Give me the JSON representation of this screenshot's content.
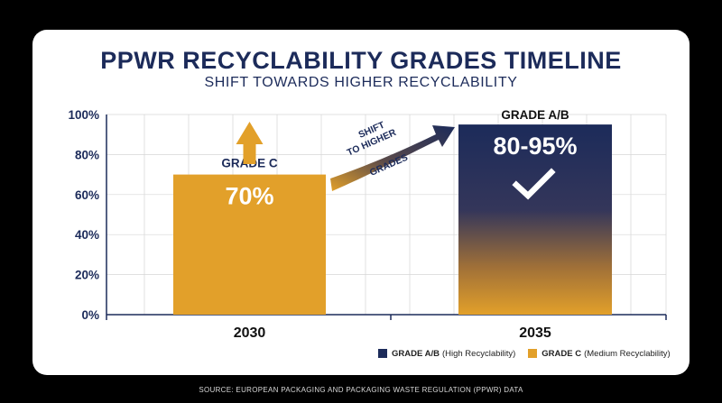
{
  "title": "PPWR RECYCLABILITY GRADES TIMELINE",
  "subtitle": "SHIFT TOWARDS HIGHER RECYCLABILITY",
  "source": "SOURCE: EUROPEAN PACKAGING AND PACKAGING WASTE REGULATION (PPWR) DATA",
  "colors": {
    "grade_c": "#e2a02a",
    "grade_ab": "#1c2b5a",
    "axis_text": "#1c2b5a",
    "grid": "#d6d6d6"
  },
  "chart_data": {
    "type": "bar",
    "categories": [
      "2030",
      "2035"
    ],
    "series": [
      {
        "name": "GRADE C",
        "values": [
          70,
          null
        ]
      },
      {
        "name": "GRADE A/B",
        "values": [
          null,
          95
        ]
      }
    ],
    "bars": [
      {
        "category": "2030",
        "grade": "GRADE C",
        "value_label": "70%",
        "value": 70,
        "color": "#e2a02a",
        "style": "solid",
        "icon": "up-arrow-icon"
      },
      {
        "category": "2035",
        "grade": "GRADE A/B",
        "value_label": "80-95%",
        "value": 95,
        "color": "#1c2b5a",
        "style": "gradient-navy-to-orange",
        "icon": "checkmark-icon"
      }
    ],
    "y_ticks": [
      "0%",
      "20%",
      "40%",
      "60%",
      "80%",
      "100%"
    ],
    "y_tick_values": [
      0,
      20,
      40,
      60,
      80,
      100
    ],
    "ylim": [
      0,
      100
    ],
    "grid": true,
    "annotation": {
      "lines": [
        "SHIFT",
        "TO HIGHER",
        "GRADES"
      ]
    },
    "legend": [
      {
        "label": "GRADE A/B",
        "desc": "(High Recyclability)",
        "color": "#1c2b5a"
      },
      {
        "label": "GRADE C",
        "desc": "(Medium Recyclability)",
        "color": "#e2a02a"
      }
    ],
    "legend_position": "bottom-right"
  }
}
